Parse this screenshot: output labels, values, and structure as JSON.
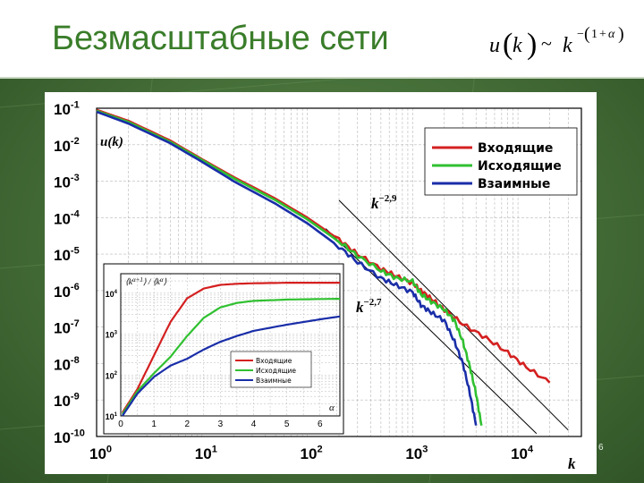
{
  "slide": {
    "title": "Безмасштабные сети",
    "page_number": "6",
    "formula": {
      "u": "u",
      "k": "k",
      "tilde": "~",
      "one": "1",
      "plus": "+",
      "alpha": "α",
      "minus": "−"
    }
  },
  "chart_data": [
    {
      "type": "line",
      "xlabel": "k",
      "ylabel": "u(k)",
      "xscale": "log",
      "yscale": "log",
      "xlim": [
        1,
        40000
      ],
      "ylim": [
        1e-10,
        0.1
      ],
      "grid": true,
      "x_ticks": [
        {
          "value": 1,
          "base": "10",
          "exp": "0"
        },
        {
          "value": 10,
          "base": "10",
          "exp": "1"
        },
        {
          "value": 100,
          "base": "10",
          "exp": "2"
        },
        {
          "value": 1000,
          "base": "10",
          "exp": "3"
        },
        {
          "value": 10000,
          "base": "10",
          "exp": "4"
        }
      ],
      "y_ticks": [
        {
          "value": 0.1,
          "base": "10",
          "exp": "-1"
        },
        {
          "value": 0.01,
          "base": "10",
          "exp": "-2"
        },
        {
          "value": 0.001,
          "base": "10",
          "exp": "-3"
        },
        {
          "value": 0.0001,
          "base": "10",
          "exp": "-4"
        },
        {
          "value": 1e-05,
          "base": "10",
          "exp": "-5"
        },
        {
          "value": 1e-06,
          "base": "10",
          "exp": "-6"
        },
        {
          "value": 1e-07,
          "base": "10",
          "exp": "-7"
        },
        {
          "value": 1e-08,
          "base": "10",
          "exp": "-8"
        },
        {
          "value": 1e-09,
          "base": "10",
          "exp": "-9"
        },
        {
          "value": 1e-10,
          "base": "10",
          "exp": "-10"
        }
      ],
      "legend_position": "top-right",
      "series": [
        {
          "name": "Входящие",
          "color": "#d42020",
          "x": [
            1,
            2,
            5,
            10,
            20,
            50,
            100,
            200,
            300,
            500,
            700,
            1000,
            1200,
            1500,
            2000,
            3000,
            5000,
            8000,
            12000,
            20000
          ],
          "y": [
            0.09,
            0.045,
            0.013,
            0.004,
            0.0013,
            0.00033,
            0.0001,
            2.5e-05,
            1e-05,
            4e-06,
            2.5e-06,
            1.6e-06,
            1e-06,
            6e-07,
            3e-07,
            1.2e-07,
            5e-08,
            2e-08,
            8e-09,
            3e-09
          ]
        },
        {
          "name": "Исходящие",
          "color": "#30c030",
          "x": [
            1,
            2,
            5,
            10,
            20,
            50,
            100,
            200,
            300,
            500,
            700,
            1000,
            1200,
            1500,
            2000,
            2500,
            3000,
            3500,
            4000,
            4500
          ],
          "y": [
            0.085,
            0.042,
            0.012,
            0.0038,
            0.0012,
            0.0003,
            9e-05,
            2.2e-05,
            9e-06,
            3.5e-06,
            2.2e-06,
            1.8e-06,
            8e-07,
            5e-07,
            3e-07,
            1.5e-07,
            4e-08,
            8e-09,
            1.5e-09,
            2e-10
          ]
        },
        {
          "name": "Взаимные",
          "color": "#1a2ea8",
          "x": [
            1,
            2,
            5,
            10,
            20,
            50,
            100,
            200,
            300,
            500,
            700,
            1000,
            1200,
            1500,
            2000,
            2500,
            3000,
            3500,
            4000
          ],
          "y": [
            0.08,
            0.038,
            0.011,
            0.0034,
            0.001,
            0.00024,
            7e-05,
            1.6e-05,
            6e-06,
            2.2e-06,
            1.4e-06,
            9e-07,
            4e-07,
            2.5e-07,
            1.5e-07,
            4e-08,
            1e-08,
            1.5e-09,
            2e-10
          ]
        }
      ],
      "reference_lines": [
        {
          "label_base": "k",
          "label_exp": "−2,9",
          "x": [
            200,
            30000
          ],
          "y": [
            0.0003,
            1.5e-10
          ]
        },
        {
          "label_base": "k",
          "label_exp": "−2,7",
          "x": [
            150,
            15000
          ],
          "y": [
            5e-05,
            1.2e-10
          ]
        }
      ]
    },
    {
      "type": "line",
      "ylabel": "⟨k^(α+1)⟩ / ⟨k^α⟩",
      "ylabel_parts": {
        "open": "⟨",
        "k": "k",
        "exp1": "α+1",
        "mid": "⟩ / ⟨",
        "exp2": "α",
        "close": "⟩"
      },
      "xlabel": "α",
      "yscale": "log",
      "xlim": [
        0,
        6.6
      ],
      "ylim": [
        10,
        30000
      ],
      "grid": true,
      "legend_position": "bottom-right",
      "x_ticks": [
        "0",
        "1",
        "2",
        "3",
        "4",
        "5",
        "6"
      ],
      "y_ticks": [
        {
          "value": 10,
          "base": "10",
          "exp": "1"
        },
        {
          "value": 100,
          "base": "10",
          "exp": "2"
        },
        {
          "value": 1000,
          "base": "10",
          "exp": "3"
        },
        {
          "value": 10000,
          "base": "10",
          "exp": "4"
        }
      ],
      "series": [
        {
          "name": "Входящие",
          "color": "#d42020",
          "x": [
            0.05,
            0.5,
            1,
            1.5,
            2,
            2.5,
            3,
            3.5,
            4,
            5,
            6,
            6.6
          ],
          "y": [
            12,
            45,
            300,
            2000,
            7500,
            13000,
            16000,
            17000,
            17500,
            18000,
            18000,
            18000
          ]
        },
        {
          "name": "Исходящие",
          "color": "#30c030",
          "x": [
            0.05,
            0.5,
            1,
            1.5,
            2,
            2.5,
            3,
            3.5,
            4,
            5,
            6,
            6.6
          ],
          "y": [
            11,
            40,
            110,
            280,
            900,
            2500,
            4500,
            5800,
            6500,
            7000,
            7200,
            7300
          ]
        },
        {
          "name": "Взаимные",
          "color": "#1a2ea8",
          "x": [
            0.05,
            0.5,
            1,
            1.5,
            2,
            2.5,
            3,
            3.5,
            4,
            5,
            6,
            6.6
          ],
          "y": [
            10,
            35,
            90,
            170,
            250,
            420,
            650,
            900,
            1200,
            1700,
            2300,
            2700
          ]
        }
      ]
    }
  ]
}
